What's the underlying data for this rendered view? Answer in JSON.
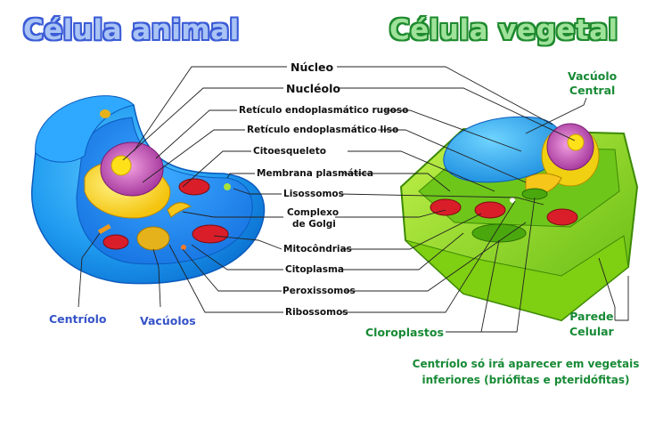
{
  "titles": {
    "animal": "Célula animal",
    "vegetal": "Célula vegetal"
  },
  "center_labels": [
    "Núcleo",
    "Nucléolo",
    "Retículo endoplasmático rugoso",
    "Retículo endoplasmático liso",
    "Citoesqueleto",
    "Membrana plasmática",
    "Lisossomos",
    "Complexo",
    "de Golgi",
    "Mitocôndrias",
    "Citoplasma",
    "Peroxissomos",
    "Ribossomos"
  ],
  "animal_labels": {
    "centriolo": "Centríolo",
    "vacuolos": "Vacúolos"
  },
  "vegetal_labels": {
    "vacuolo_line1": "Vacúolo",
    "vacuolo_line2": "Central",
    "parede_line1": "Parede",
    "parede_line2": "Celular",
    "cloroplastos": "Cloroplastos"
  },
  "note": {
    "line1": "Centríolo só irá aparecer em vegetais",
    "line2": "inferiores (briófitas e pteridófitas)"
  },
  "colors": {
    "animal_title": "#a9c4f5",
    "animal_title_outline": "#3b5bd6",
    "vegetal_title": "#9fe29a",
    "vegetal_title_outline": "#1e8a2e",
    "animal_cell": "#1f9bf0",
    "plant_wall": "#8fd81e",
    "nucleus": "#c94fb8",
    "nucleolus": "#ffe11a",
    "mitochondria": "#d91e2a",
    "golgi": "#f6c61a"
  }
}
